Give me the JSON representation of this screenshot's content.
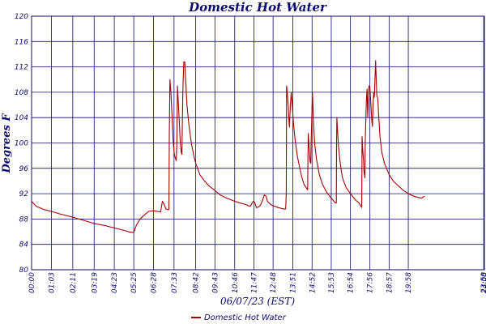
{
  "chart_data": {
    "type": "line",
    "title": "Domestic Hot Water",
    "xlabel": "06/07/23 (EST)",
    "ylabel": "Degrees F",
    "ylim": [
      80,
      120
    ],
    "yticks": [
      80,
      84,
      88,
      92,
      96,
      100,
      104,
      108,
      112,
      116,
      120
    ],
    "xlim": [
      0,
      1440
    ],
    "xticks": [
      {
        "minute": 0,
        "label": "00:00"
      },
      {
        "minute": 63,
        "label": "01:03"
      },
      {
        "minute": 131,
        "label": "02:11"
      },
      {
        "minute": 199,
        "label": "03:19"
      },
      {
        "minute": 263,
        "label": "04:23"
      },
      {
        "minute": 325,
        "label": "05:25"
      },
      {
        "minute": 388,
        "label": "06:28"
      },
      {
        "minute": 453,
        "label": "07:33"
      },
      {
        "minute": 522,
        "label": "08:42"
      },
      {
        "minute": 583,
        "label": "09:43"
      },
      {
        "minute": 646,
        "label": "10:46"
      },
      {
        "minute": 707,
        "label": "11:47"
      },
      {
        "minute": 768,
        "label": "12:48"
      },
      {
        "minute": 831,
        "label": "13:51"
      },
      {
        "minute": 892,
        "label": "14:52"
      },
      {
        "minute": 953,
        "label": "15:53"
      },
      {
        "minute": 1014,
        "label": "16:54"
      },
      {
        "minute": 1076,
        "label": "17:56"
      },
      {
        "minute": 1137,
        "label": "18:57"
      },
      {
        "minute": 1198,
        "label": "19:58"
      },
      {
        "minute": 1438,
        "label": "23:58"
      },
      {
        "minute": 1440,
        "label": "24:00"
      }
    ],
    "grid": true,
    "legend": "bottom-center",
    "series": [
      {
        "name": "Domestic Hot Water",
        "color": "#a30000",
        "points": [
          [
            0,
            90.8
          ],
          [
            15,
            90.0
          ],
          [
            40,
            89.5
          ],
          [
            63,
            89.2
          ],
          [
            90,
            88.8
          ],
          [
            131,
            88.3
          ],
          [
            165,
            87.8
          ],
          [
            199,
            87.3
          ],
          [
            230,
            87.0
          ],
          [
            263,
            86.6
          ],
          [
            295,
            86.2
          ],
          [
            315,
            85.9
          ],
          [
            325,
            85.9
          ],
          [
            333,
            87.0
          ],
          [
            345,
            88.0
          ],
          [
            358,
            88.6
          ],
          [
            372,
            89.2
          ],
          [
            388,
            89.3
          ],
          [
            403,
            89.2
          ],
          [
            410,
            89.1
          ],
          [
            416,
            90.8
          ],
          [
            420,
            90.5
          ],
          [
            427,
            89.6
          ],
          [
            432,
            89.5
          ],
          [
            437,
            89.5
          ],
          [
            438,
            101.0
          ],
          [
            440,
            110.0
          ],
          [
            443,
            108.0
          ],
          [
            447,
            104.0
          ],
          [
            450,
            100.5
          ],
          [
            453,
            98.5
          ],
          [
            456,
            97.8
          ],
          [
            460,
            97.2
          ],
          [
            462,
            100.0
          ],
          [
            464,
            109.0
          ],
          [
            467,
            106.0
          ],
          [
            470,
            103.0
          ],
          [
            473,
            100.0
          ],
          [
            476,
            98.5
          ],
          [
            478,
            98.2
          ],
          [
            479,
            101.0
          ],
          [
            481,
            108.0
          ],
          [
            484,
            112.8
          ],
          [
            487,
            112.8
          ],
          [
            490,
            110.0
          ],
          [
            494,
            106.0
          ],
          [
            500,
            103.0
          ],
          [
            508,
            100.0
          ],
          [
            516,
            98.0
          ],
          [
            522,
            96.8
          ],
          [
            535,
            95.0
          ],
          [
            550,
            94.0
          ],
          [
            565,
            93.2
          ],
          [
            583,
            92.5
          ],
          [
            600,
            91.8
          ],
          [
            620,
            91.3
          ],
          [
            646,
            90.8
          ],
          [
            665,
            90.5
          ],
          [
            680,
            90.3
          ],
          [
            690,
            90.1
          ],
          [
            695,
            90.0
          ],
          [
            700,
            90.4
          ],
          [
            705,
            90.8
          ],
          [
            710,
            90.6
          ],
          [
            715,
            89.8
          ],
          [
            722,
            89.9
          ],
          [
            728,
            90.2
          ],
          [
            735,
            91.0
          ],
          [
            740,
            91.8
          ],
          [
            746,
            91.6
          ],
          [
            750,
            90.8
          ],
          [
            760,
            90.3
          ],
          [
            768,
            90.1
          ],
          [
            785,
            89.8
          ],
          [
            800,
            89.6
          ],
          [
            808,
            89.6
          ],
          [
            810,
            92.0
          ],
          [
            811,
            109.0
          ],
          [
            813,
            108.0
          ],
          [
            816,
            106.0
          ],
          [
            818,
            104.0
          ],
          [
            820,
            102.5
          ],
          [
            823,
            106.0
          ],
          [
            826,
            108.0
          ],
          [
            829,
            106.0
          ],
          [
            833,
            103.0
          ],
          [
            838,
            100.5
          ],
          [
            845,
            98.0
          ],
          [
            853,
            96.0
          ],
          [
            860,
            94.5
          ],
          [
            866,
            93.5
          ],
          [
            875,
            92.8
          ],
          [
            878,
            92.6
          ],
          [
            879,
            98.0
          ],
          [
            880,
            101.5
          ],
          [
            883,
            99.0
          ],
          [
            886,
            97.0
          ],
          [
            888,
            96.8
          ],
          [
            889,
            100.0
          ],
          [
            891,
            104.0
          ],
          [
            893,
            108.0
          ],
          [
            896,
            104.0
          ],
          [
            900,
            100.0
          ],
          [
            906,
            97.5
          ],
          [
            915,
            95.0
          ],
          [
            925,
            93.5
          ],
          [
            935,
            92.5
          ],
          [
            945,
            91.8
          ],
          [
            955,
            91.2
          ],
          [
            965,
            90.6
          ],
          [
            969,
            90.5
          ],
          [
            970,
            100.0
          ],
          [
            971,
            104.0
          ],
          [
            973,
            102.0
          ],
          [
            976,
            99.5
          ],
          [
            980,
            97.5
          ],
          [
            985,
            95.5
          ],
          [
            990,
            94.3
          ],
          [
            1000,
            93.0
          ],
          [
            1014,
            92.0
          ],
          [
            1030,
            91.0
          ],
          [
            1040,
            90.6
          ],
          [
            1048,
            90.0
          ],
          [
            1050,
            89.8
          ],
          [
            1051,
            101.0
          ],
          [
            1053,
            99.0
          ],
          [
            1056,
            97.0
          ],
          [
            1057,
            95.5
          ],
          [
            1058,
            95.2
          ],
          [
            1060,
            94.5
          ],
          [
            1061,
            100.0
          ],
          [
            1063,
            104.0
          ],
          [
            1065,
            107.0
          ],
          [
            1067,
            108.5
          ],
          [
            1069,
            104.0
          ],
          [
            1071,
            107.0
          ],
          [
            1073,
            109.0
          ],
          [
            1076,
            108.8
          ],
          [
            1079,
            106.0
          ],
          [
            1082,
            103.5
          ],
          [
            1084,
            102.6
          ],
          [
            1086,
            106.0
          ],
          [
            1088,
            108.0
          ],
          [
            1090,
            107.2
          ],
          [
            1092,
            110.0
          ],
          [
            1094,
            113.0
          ],
          [
            1096,
            110.0
          ],
          [
            1098,
            107.5
          ],
          [
            1101,
            107.0
          ],
          [
            1104,
            104.0
          ],
          [
            1108,
            101.0
          ],
          [
            1114,
            98.5
          ],
          [
            1122,
            96.8
          ],
          [
            1137,
            95.0
          ],
          [
            1150,
            94.0
          ],
          [
            1165,
            93.3
          ],
          [
            1180,
            92.6
          ],
          [
            1198,
            92.0
          ],
          [
            1215,
            91.6
          ],
          [
            1230,
            91.4
          ],
          [
            1240,
            91.3
          ],
          [
            1250,
            91.6
          ]
        ]
      }
    ]
  }
}
